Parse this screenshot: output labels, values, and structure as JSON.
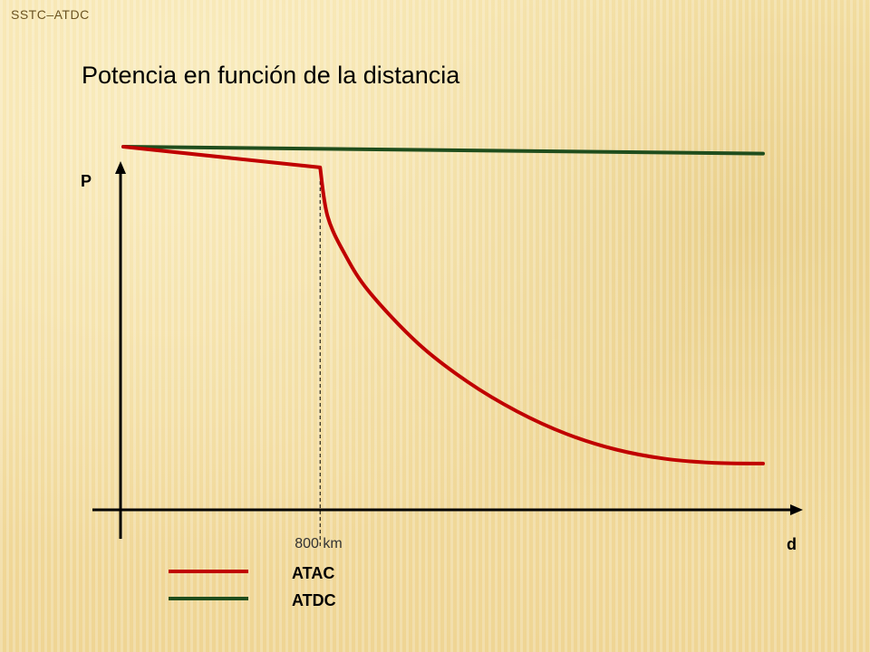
{
  "header": {
    "label": "SSTC–ATDC"
  },
  "slide": {
    "title": "Potencia en función de la distancia"
  },
  "colors": {
    "atac": "#c00000",
    "atdc": "#1f4d1c",
    "axis": "#000000"
  },
  "chart_data": {
    "type": "line",
    "title": "Potencia en función de la distancia",
    "xlabel": "d",
    "ylabel": "P",
    "grid": false,
    "legend_position": "bottom",
    "annotations": [
      {
        "x": 800,
        "text": "800 km",
        "style": "dashed-vertical"
      }
    ],
    "xlim": [
      0,
      2600
    ],
    "ylim": [
      0,
      100
    ],
    "series": [
      {
        "name": "ATAC",
        "color": "#c00000",
        "points": [
          [
            0,
            100
          ],
          [
            800,
            94
          ],
          [
            830,
            80
          ],
          [
            900,
            69
          ],
          [
            1000,
            58
          ],
          [
            1200,
            43
          ],
          [
            1400,
            32
          ],
          [
            1600,
            23.5
          ],
          [
            1800,
            17
          ],
          [
            2000,
            12.5
          ],
          [
            2200,
            9.8
          ],
          [
            2400,
            8.6
          ],
          [
            2600,
            8.4
          ]
        ]
      },
      {
        "name": "ATDC",
        "color": "#1f4d1c",
        "points": [
          [
            0,
            100
          ],
          [
            2600,
            98
          ]
        ]
      }
    ]
  }
}
